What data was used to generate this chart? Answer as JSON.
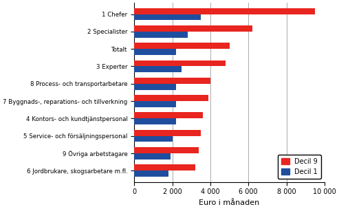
{
  "categories": [
    "1 Chefer",
    "2 Specialister",
    "Totalt",
    "3 Experter",
    "8 Process- och transportarbetare",
    "7 Byggnads-, reparations- och tillverkning",
    "4 Kontors- och kundtjänstpersonal",
    "5 Service- och försäljningspersonal",
    "9 Övriga arbetstagare",
    "6 Jordbrukare, skogsarbetare m.fl."
  ],
  "decil9": [
    9500,
    6200,
    5000,
    4800,
    4000,
    3900,
    3600,
    3500,
    3400,
    3200
  ],
  "decil1": [
    3500,
    2800,
    2200,
    2500,
    2200,
    2200,
    2200,
    2000,
    1900,
    1800
  ],
  "color_decil9": "#e8251f",
  "color_decil1": "#1f4e9e",
  "xlabel": "Euro i månaden",
  "xlim": [
    0,
    10000
  ],
  "xticks": [
    0,
    2000,
    4000,
    6000,
    8000,
    10000
  ],
  "xtick_labels": [
    "0",
    "2 000",
    "4 000",
    "6 000",
    "8 000",
    "10 000"
  ],
  "legend_decil9": "Decil 9",
  "legend_decil1": "Decil 1",
  "bar_height": 0.35,
  "background_color": "#ffffff",
  "grid_color": "#aaaaaa"
}
